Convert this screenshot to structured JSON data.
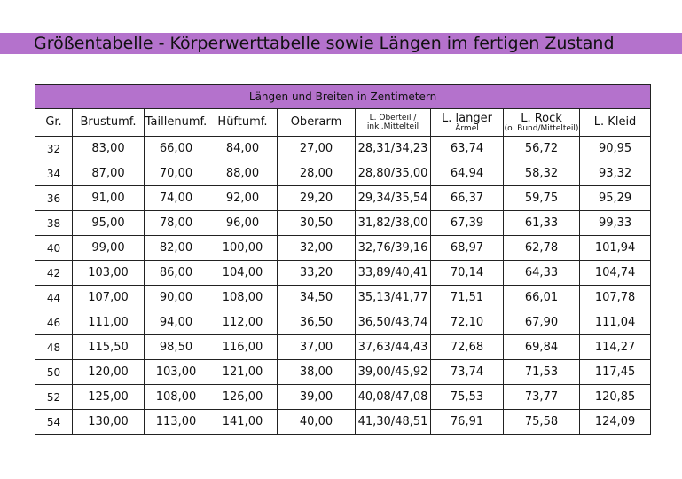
{
  "title": "Größentabelle - Körperwerttabelle sowie Längen im fertigen Zustand",
  "table": {
    "band_header": "Längen und Breiten in Zentimetern",
    "columns": [
      {
        "label": "Gr."
      },
      {
        "label": "Brustumf."
      },
      {
        "label": "Taillenumf."
      },
      {
        "label": "Hüftumf."
      },
      {
        "label": "Oberarm"
      },
      {
        "label": "L. Oberteil /",
        "sub": "inkl.Mittelteil"
      },
      {
        "label": "L. langer",
        "sub": "Ärmel"
      },
      {
        "label": "L. Rock",
        "sub": "(o. Bund/Mittelteil)"
      },
      {
        "label": "L. Kleid"
      }
    ],
    "rows": [
      [
        "32",
        "83,00",
        "66,00",
        "84,00",
        "27,00",
        "28,31/34,23",
        "63,74",
        "56,72",
        "90,95"
      ],
      [
        "34",
        "87,00",
        "70,00",
        "88,00",
        "28,00",
        "28,80/35,00",
        "64,94",
        "58,32",
        "93,32"
      ],
      [
        "36",
        "91,00",
        "74,00",
        "92,00",
        "29,20",
        "29,34/35,54",
        "66,37",
        "59,75",
        "95,29"
      ],
      [
        "38",
        "95,00",
        "78,00",
        "96,00",
        "30,50",
        "31,82/38,00",
        "67,39",
        "61,33",
        "99,33"
      ],
      [
        "40",
        "99,00",
        "82,00",
        "100,00",
        "32,00",
        "32,76/39,16",
        "68,97",
        "62,78",
        "101,94"
      ],
      [
        "42",
        "103,00",
        "86,00",
        "104,00",
        "33,20",
        "33,89/40,41",
        "70,14",
        "64,33",
        "104,74"
      ],
      [
        "44",
        "107,00",
        "90,00",
        "108,00",
        "34,50",
        "35,13/41,77",
        "71,51",
        "66,01",
        "107,78"
      ],
      [
        "46",
        "111,00",
        "94,00",
        "112,00",
        "36,50",
        "36,50/43,74",
        "72,10",
        "67,90",
        "111,04"
      ],
      [
        "48",
        "115,50",
        "98,50",
        "116,00",
        "37,00",
        "37,63/44,43",
        "72,68",
        "69,84",
        "114,27"
      ],
      [
        "50",
        "120,00",
        "103,00",
        "121,00",
        "38,00",
        "39,00/45,92",
        "73,74",
        "71,53",
        "117,45"
      ],
      [
        "52",
        "125,00",
        "108,00",
        "126,00",
        "39,00",
        "40,08/47,08",
        "75,53",
        "73,77",
        "120,85"
      ],
      [
        "54",
        "130,00",
        "113,00",
        "141,00",
        "40,00",
        "41,30/48,51",
        "76,91",
        "75,58",
        "124,09"
      ]
    ]
  },
  "colors": {
    "accent": "#b472cc",
    "border": "#222222"
  }
}
